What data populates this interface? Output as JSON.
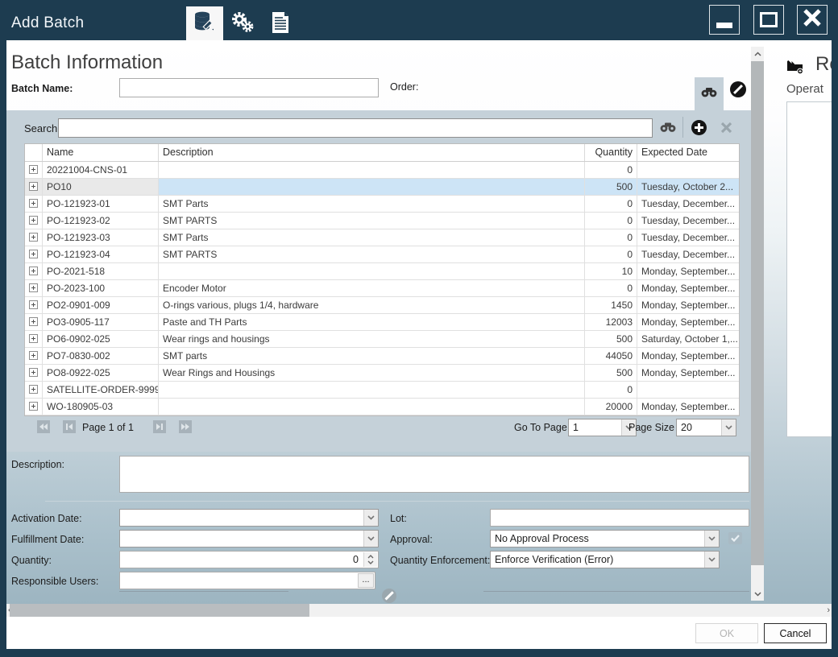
{
  "window": {
    "title": "Add Batch"
  },
  "titlebar": {
    "icons": [
      "database-edit",
      "process-gears",
      "report-document"
    ],
    "controls": [
      "minimize",
      "maximize",
      "close"
    ]
  },
  "header": {
    "title": "Batch Information"
  },
  "top_form": {
    "batch_name_label": "Batch Name:",
    "batch_name_value": "",
    "order_label": "Order:"
  },
  "search_panel": {
    "search_label": "Search",
    "search_value": ""
  },
  "grid": {
    "columns": [
      "",
      "Name",
      "Description",
      "Quantity",
      "Expected Date"
    ],
    "rows": [
      {
        "name": "20221004-CNS-01",
        "description": "",
        "quantity": "0",
        "expected_date": "",
        "selected": false
      },
      {
        "name": "PO10",
        "description": "",
        "quantity": "500",
        "expected_date": "Tuesday, October 2...",
        "selected": true
      },
      {
        "name": "PO-121923-01",
        "description": "SMT Parts",
        "quantity": "0",
        "expected_date": "Tuesday, December...",
        "selected": false
      },
      {
        "name": "PO-121923-02",
        "description": "SMT PARTS",
        "quantity": "0",
        "expected_date": "Tuesday, December...",
        "selected": false
      },
      {
        "name": "PO-121923-03",
        "description": "SMT Parts",
        "quantity": "0",
        "expected_date": "Tuesday, December...",
        "selected": false
      },
      {
        "name": "PO-121923-04",
        "description": "SMT PARTS",
        "quantity": "0",
        "expected_date": "Tuesday, December...",
        "selected": false
      },
      {
        "name": "PO-2021-518",
        "description": "",
        "quantity": "10",
        "expected_date": "Monday, September...",
        "selected": false
      },
      {
        "name": "PO-2023-100",
        "description": "Encoder Motor",
        "quantity": "0",
        "expected_date": "Monday, September...",
        "selected": false
      },
      {
        "name": "PO2-0901-009",
        "description": "O-rings various, plugs 1/4, hardware",
        "quantity": "1450",
        "expected_date": "Monday, September...",
        "selected": false
      },
      {
        "name": "PO3-0905-117",
        "description": "Paste and TH Parts",
        "quantity": "12003",
        "expected_date": "Monday, September...",
        "selected": false
      },
      {
        "name": "PO6-0902-025",
        "description": "Wear rings and housings",
        "quantity": "500",
        "expected_date": "Saturday, October 1,...",
        "selected": false
      },
      {
        "name": "PO7-0830-002",
        "description": "SMT parts",
        "quantity": "44050",
        "expected_date": "Monday, September...",
        "selected": false
      },
      {
        "name": "PO8-0922-025",
        "description": "Wear Rings and Housings",
        "quantity": "500",
        "expected_date": "Monday, September...",
        "selected": false
      },
      {
        "name": "SATELLITE-ORDER-9999",
        "description": "",
        "quantity": "0",
        "expected_date": "",
        "selected": false
      },
      {
        "name": "WO-180905-03",
        "description": "",
        "quantity": "20000",
        "expected_date": "Monday, September...",
        "selected": false
      }
    ]
  },
  "pagination": {
    "page_text": "Page 1 of 1",
    "goto_label": "Go To Page",
    "goto_value": "1",
    "page_size_label": "Page Size",
    "page_size_value": "20"
  },
  "details": {
    "description_label": "Description:",
    "description_value": "",
    "activation_date_label": "Activation Date:",
    "activation_date_value": "",
    "fulfillment_date_label": "Fulfillment Date:",
    "fulfillment_date_value": "",
    "quantity_label": "Quantity:",
    "quantity_value": "0",
    "responsible_users_label": "Responsible Users:",
    "responsible_users_value": "",
    "ellipsis_button": "...",
    "lot_label": "Lot:",
    "lot_value": "",
    "approval_label": "Approval:",
    "approval_value": "No Approval Process",
    "quantity_enforcement_label": "Quantity Enforcement:",
    "quantity_enforcement_value": "Enforce Verification (Error)"
  },
  "side_panel": {
    "heading": "Re",
    "operations_label": "Operat"
  },
  "footer": {
    "ok_label": "OK",
    "cancel_label": "Cancel"
  },
  "colors": {
    "titlebar": "#1d3c50",
    "panel": "#c5d1d9",
    "selected_row": "#cde4f6",
    "disabled_text": "#b4b4b4"
  }
}
